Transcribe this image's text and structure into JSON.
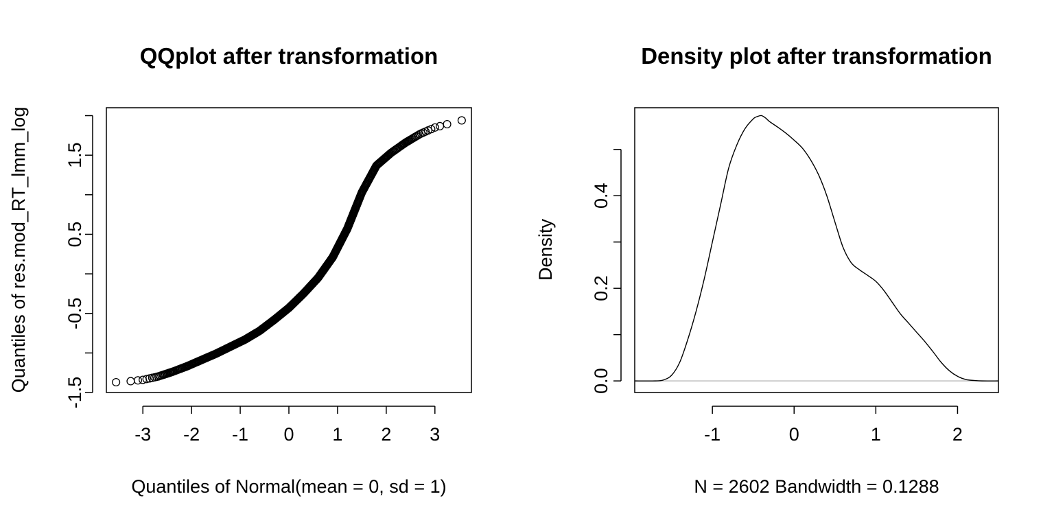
{
  "chart_data": [
    {
      "type": "scatter",
      "title": "QQplot after transformation",
      "xlabel": "Quantiles of Normal(mean = 0, sd = 1)",
      "ylabel": "Quantiles of res.mod_RT_lmm_log",
      "xlim": [
        -3.75,
        3.75
      ],
      "ylim": [
        -1.5,
        2.1
      ],
      "x_ticks": [
        -3,
        -2,
        -1,
        0,
        1,
        2,
        3
      ],
      "x_tick_labels": [
        "-3",
        "-2",
        "-1",
        "0",
        "1",
        "2",
        "3"
      ],
      "y_ticks": [
        -1.5,
        -1.0,
        -0.5,
        0.0,
        0.5,
        1.0,
        1.5,
        2.0
      ],
      "y_tick_labels": [
        "-1.5",
        "",
        "-0.5",
        "",
        "0.5",
        "",
        "1.5",
        ""
      ],
      "grid": false,
      "n_points": 2602,
      "curve_knots": {
        "x": [
          -3.53,
          -3.3,
          -3.0,
          -2.7,
          -2.4,
          -2.1,
          -1.8,
          -1.5,
          -1.2,
          -0.9,
          -0.6,
          -0.3,
          0.0,
          0.3,
          0.6,
          0.9,
          1.2,
          1.5,
          1.8,
          2.1,
          2.4,
          2.7,
          3.0,
          3.3,
          3.53
        ],
        "y": [
          -1.37,
          -1.36,
          -1.34,
          -1.3,
          -1.24,
          -1.17,
          -1.09,
          -1.01,
          -0.92,
          -0.83,
          -0.72,
          -0.58,
          -0.43,
          -0.25,
          -0.05,
          0.21,
          0.57,
          1.03,
          1.37,
          1.53,
          1.66,
          1.77,
          1.85,
          1.9,
          1.94
        ]
      }
    },
    {
      "type": "line",
      "title": "Density plot after transformation",
      "xlabel": "N = 2602   Bandwidth = 0.1288",
      "ylabel": "Density",
      "xlim": [
        -1.95,
        2.5
      ],
      "ylim": [
        -0.025,
        0.59
      ],
      "x_ticks": [
        -1,
        0,
        1,
        2
      ],
      "x_tick_labels": [
        "-1",
        "0",
        "1",
        "2"
      ],
      "y_ticks": [
        0.0,
        0.1,
        0.2,
        0.3,
        0.4,
        0.5
      ],
      "y_tick_labels": [
        "0.0",
        "",
        "0.2",
        "",
        "0.4",
        ""
      ],
      "grid": false,
      "zero_line_color": "#bebebe",
      "series": [
        {
          "x": [
            -1.95,
            -1.7,
            -1.6,
            -1.5,
            -1.4,
            -1.3,
            -1.2,
            -1.1,
            -1.0,
            -0.9,
            -0.8,
            -0.7,
            -0.6,
            -0.5,
            -0.45,
            -0.4,
            -0.35,
            -0.3,
            -0.2,
            -0.1,
            0.0,
            0.1,
            0.2,
            0.3,
            0.4,
            0.5,
            0.6,
            0.7,
            0.8,
            0.9,
            1.0,
            1.1,
            1.2,
            1.3,
            1.4,
            1.5,
            1.6,
            1.7,
            1.8,
            1.9,
            2.0,
            2.1,
            2.2,
            2.3,
            2.5
          ],
          "y": [
            0.0,
            0.0,
            0.002,
            0.012,
            0.04,
            0.09,
            0.15,
            0.22,
            0.3,
            0.38,
            0.46,
            0.51,
            0.545,
            0.566,
            0.571,
            0.573,
            0.568,
            0.56,
            0.548,
            0.535,
            0.52,
            0.503,
            0.478,
            0.445,
            0.4,
            0.343,
            0.288,
            0.255,
            0.24,
            0.228,
            0.215,
            0.195,
            0.17,
            0.145,
            0.125,
            0.105,
            0.085,
            0.063,
            0.04,
            0.022,
            0.01,
            0.003,
            0.001,
            0.0,
            0.0
          ]
        }
      ]
    }
  ]
}
